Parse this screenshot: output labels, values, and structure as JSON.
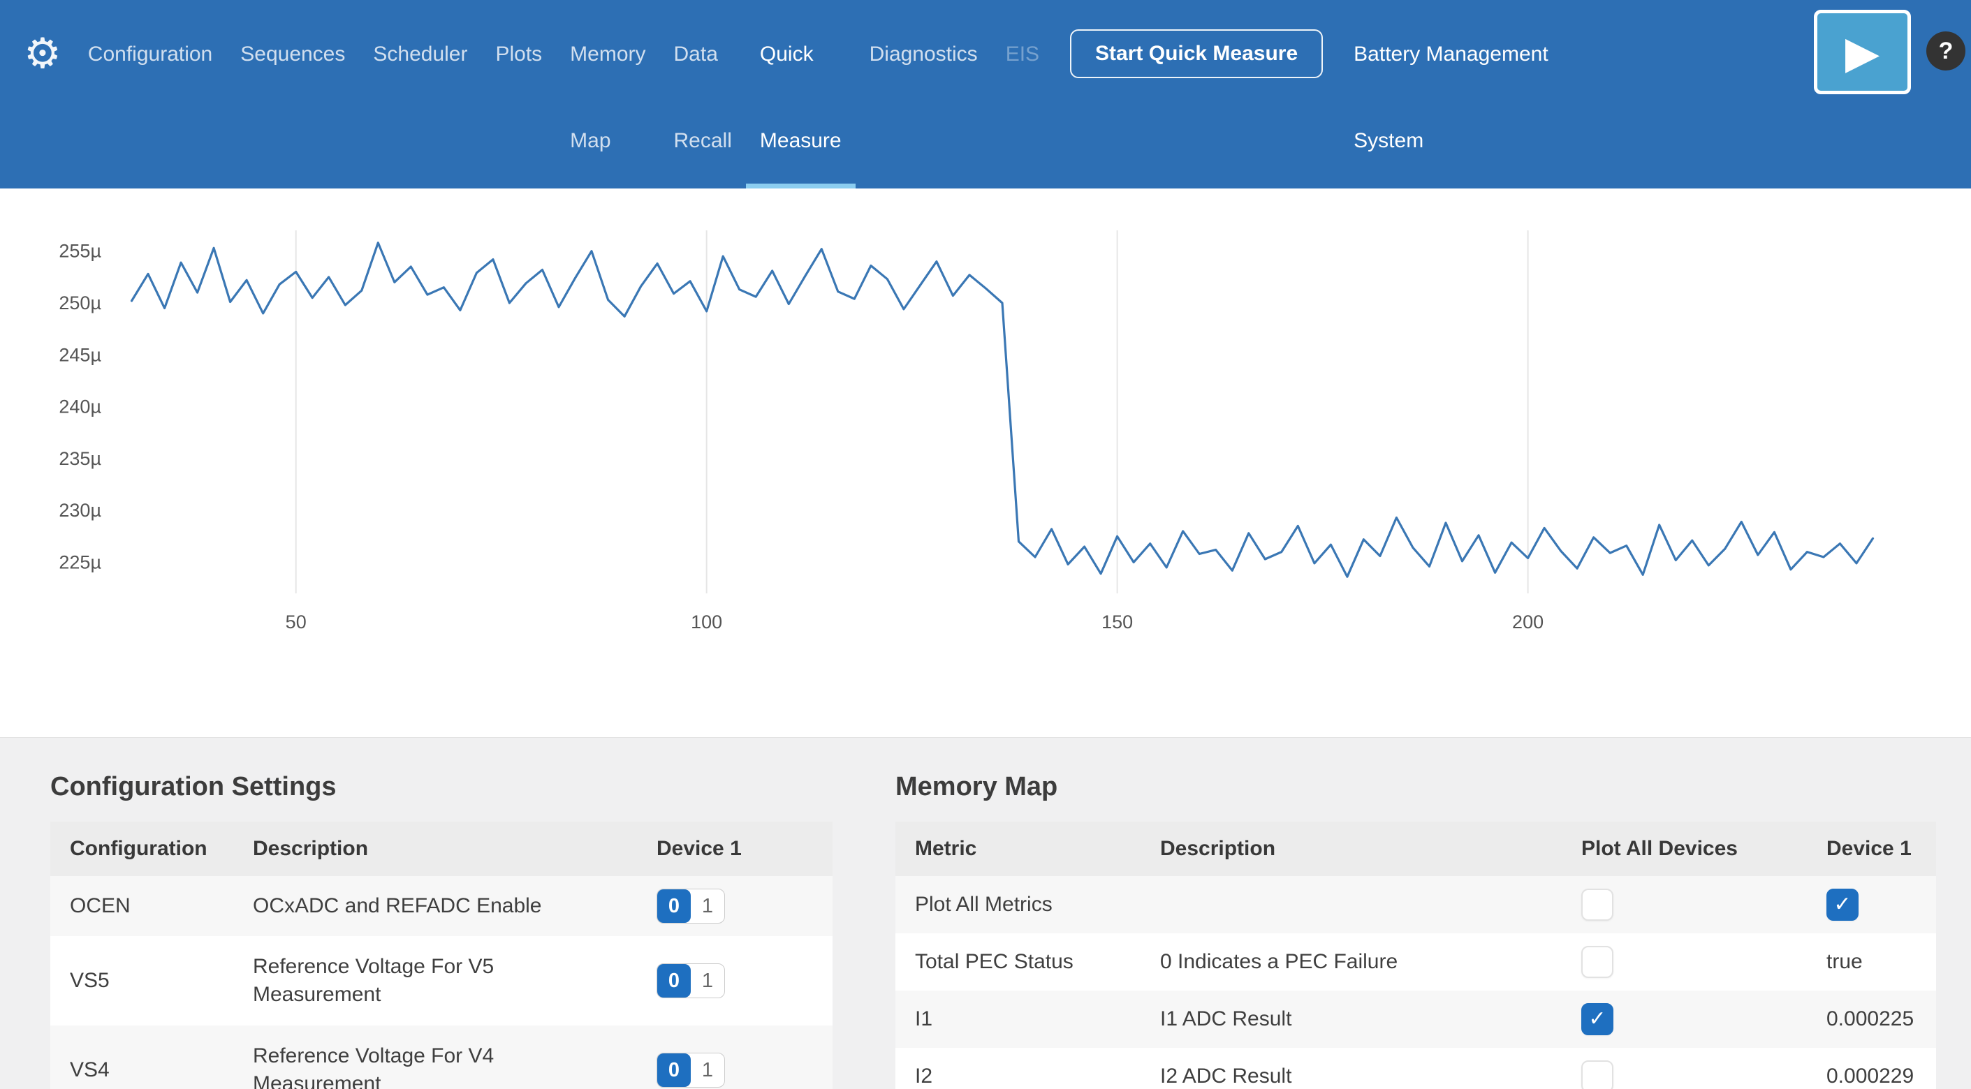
{
  "icons": {
    "gear": "⚙",
    "play": "▶",
    "help": "?",
    "check": "✓"
  },
  "nav": {
    "items": [
      {
        "line1": "Configuration",
        "line2": ""
      },
      {
        "line1": "Sequences",
        "line2": ""
      },
      {
        "line1": "Scheduler",
        "line2": ""
      },
      {
        "line1": "Plots",
        "line2": ""
      },
      {
        "line1": "Memory",
        "line2": "Map"
      },
      {
        "line1": "Data",
        "line2": "Recall"
      },
      {
        "line1": "Quick",
        "line2": "Measure",
        "active": true
      },
      {
        "line1": "Diagnostics",
        "line2": ""
      },
      {
        "line1": "EIS",
        "line2": "",
        "disabled": true
      },
      {
        "line1": "Battery Management",
        "line2": "System",
        "highlight": true
      }
    ],
    "start_button_label": "Start Quick Measure"
  },
  "chart_data": {
    "type": "line",
    "title": "",
    "xlabel": "",
    "ylabel": "",
    "y_unit": "µ",
    "xlim": [
      28,
      244
    ],
    "ylim": [
      222,
      257
    ],
    "xticks": [
      50,
      100,
      150,
      200
    ],
    "yticks": [
      225,
      230,
      235,
      240,
      245,
      250,
      255
    ],
    "grid": "vertical",
    "line_color": "#3a77b4",
    "series": [
      {
        "name": "I1",
        "x": [
          30,
          32,
          34,
          36,
          38,
          40,
          42,
          44,
          46,
          48,
          50,
          52,
          54,
          56,
          58,
          60,
          62,
          64,
          66,
          68,
          70,
          72,
          74,
          76,
          78,
          80,
          82,
          84,
          86,
          88,
          90,
          92,
          94,
          96,
          98,
          100,
          102,
          104,
          106,
          108,
          110,
          112,
          114,
          116,
          118,
          120,
          122,
          124,
          126,
          128,
          130,
          132,
          134,
          136,
          138,
          140,
          142,
          144,
          146,
          148,
          150,
          152,
          154,
          156,
          158,
          160,
          162,
          164,
          166,
          168,
          170,
          172,
          174,
          176,
          178,
          180,
          182,
          184,
          186,
          188,
          190,
          192,
          194,
          196,
          198,
          200,
          202,
          204,
          206,
          208,
          210,
          212,
          214,
          216,
          218,
          220,
          222,
          224,
          226,
          228,
          230,
          232,
          234,
          236,
          238,
          240,
          242
        ],
        "y": [
          250.2,
          252.8,
          249.5,
          253.9,
          251.0,
          255.3,
          250.1,
          252.2,
          249.0,
          251.8,
          253.0,
          250.5,
          252.5,
          249.8,
          251.2,
          255.8,
          252.0,
          253.5,
          250.8,
          251.5,
          249.3,
          252.9,
          254.2,
          250.0,
          251.9,
          253.2,
          249.6,
          252.4,
          255.0,
          250.3,
          248.7,
          251.6,
          253.8,
          250.9,
          252.1,
          249.2,
          254.5,
          251.3,
          250.6,
          253.1,
          249.9,
          252.6,
          255.2,
          251.1,
          250.4,
          253.6,
          252.3,
          249.4,
          251.7,
          254.0,
          250.7,
          252.7,
          251.4,
          250.0,
          227.0,
          225.5,
          228.2,
          224.8,
          226.5,
          223.9,
          227.5,
          225.0,
          226.8,
          224.5,
          228.0,
          225.8,
          226.2,
          224.2,
          227.8,
          225.3,
          226.0,
          228.5,
          224.9,
          226.7,
          223.6,
          227.2,
          225.6,
          229.3,
          226.4,
          224.6,
          228.8,
          225.1,
          227.6,
          224.0,
          226.9,
          225.4,
          228.3,
          226.1,
          224.4,
          227.4,
          225.9,
          226.6,
          223.8,
          228.6,
          225.2,
          227.1,
          224.7,
          226.3,
          228.9,
          225.7,
          227.9,
          224.3,
          226.0,
          225.5,
          226.8,
          224.9,
          227.3
        ]
      }
    ]
  },
  "config_panel": {
    "title": "Configuration Settings",
    "columns": [
      "Configuration",
      "Description",
      "Device 1"
    ],
    "toggle_options": [
      "0",
      "1"
    ],
    "rows": [
      {
        "name": "OCEN",
        "description": "OCxADC and REFADC Enable",
        "value": "0",
        "sel0": true
      },
      {
        "name": "VS5",
        "description": "Reference Voltage For V5 Measurement",
        "value": "0",
        "sel0": true
      },
      {
        "name": "VS4",
        "description": "Reference Voltage For V4 Measurement",
        "value": "0",
        "sel0": true
      }
    ]
  },
  "memory_panel": {
    "title": "Memory Map",
    "columns": [
      "Metric",
      "Description",
      "Plot All Devices",
      "Device 1"
    ],
    "rows": [
      {
        "metric": "Plot All Metrics",
        "description": "",
        "plot_all": false,
        "device1_checked": true,
        "device1": ""
      },
      {
        "metric": "Total PEC Status",
        "description": "0 Indicates a PEC Failure",
        "plot_all": false,
        "device1": "true"
      },
      {
        "metric": "I1",
        "description": "I1 ADC Result",
        "plot_all": true,
        "device1": "0.000225"
      },
      {
        "metric": "I2",
        "description": "I2 ADC Result",
        "plot_all": false,
        "device1": "0.000229"
      }
    ]
  },
  "colors": {
    "nav_background": "#2d6fb4",
    "accent_blue": "#1e6fc0",
    "active_underline": "#8bcdf0",
    "chart_line": "#3a77b4"
  }
}
